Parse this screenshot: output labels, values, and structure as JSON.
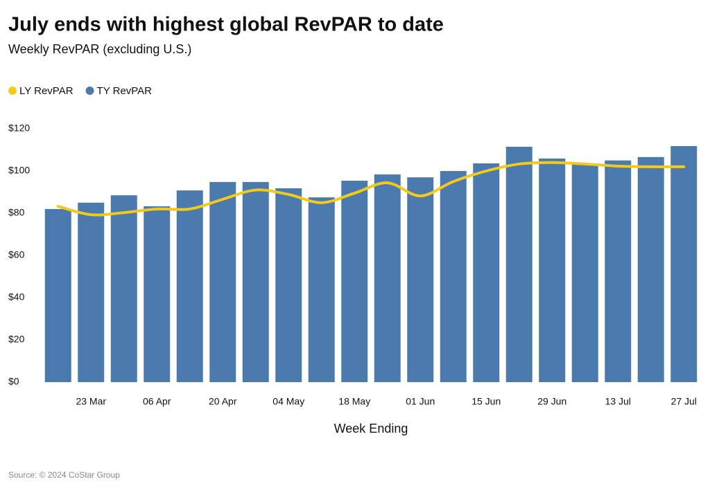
{
  "chart_data": {
    "type": "bar",
    "title": "July ends with highest global RevPAR to date",
    "subtitle": "Weekly RevPAR (excluding U.S.)",
    "x_label": "Week Ending",
    "source": "Source: © 2024 CoStar Group",
    "categories": [
      null,
      "23 Mar",
      null,
      "06 Apr",
      null,
      "20 Apr",
      null,
      "04 May",
      null,
      "18 May",
      null,
      "01 Jun",
      null,
      "15 Jun",
      null,
      "29 Jun",
      null,
      "13 Jul",
      null,
      "27 Jul"
    ],
    "series": [
      {
        "name": "LY RevPAR",
        "type": "line",
        "color": "#f5c918",
        "values": [
          83.3,
          79.3,
          80.3,
          82,
          82,
          86.6,
          91,
          88.9,
          85,
          89.5,
          94.4,
          88.2,
          95,
          100,
          103.3,
          104,
          103.3,
          102.3,
          102,
          102
        ]
      },
      {
        "name": "TY RevPAR",
        "type": "bar",
        "color": "#4a7aae",
        "values": [
          82,
          85,
          88.5,
          83.3,
          90.8,
          94.8,
          94.8,
          91.8,
          87.5,
          95.4,
          98.4,
          97,
          100,
          103.6,
          111.5,
          105.9,
          103.6,
          105,
          106.6,
          111.8
        ]
      }
    ],
    "ylim": [
      0,
      120
    ],
    "yticks": [
      {
        "value": 0,
        "label": "$0"
      },
      {
        "value": 20,
        "label": "$20"
      },
      {
        "value": 40,
        "label": "$40"
      },
      {
        "value": 60,
        "label": "$60"
      },
      {
        "value": 80,
        "label": "$80"
      },
      {
        "value": 100,
        "label": "$100"
      },
      {
        "value": 120,
        "label": "$120"
      }
    ],
    "legend": "top-left"
  }
}
